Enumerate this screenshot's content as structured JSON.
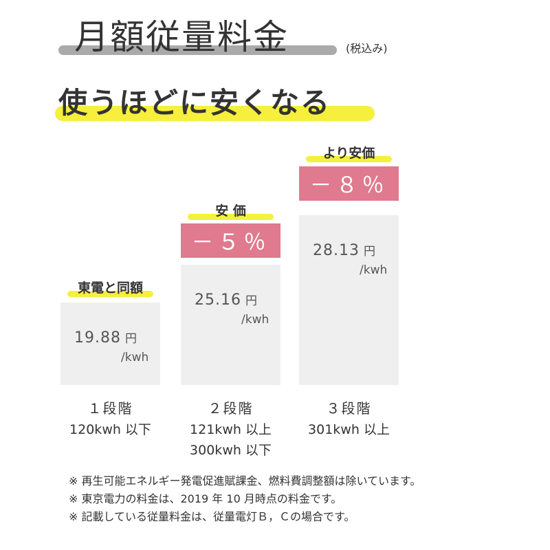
{
  "header": {
    "title": "月額従量料金",
    "note": "(税込み)",
    "headline": "使うほどに安くなる"
  },
  "tiers": [
    {
      "label": "東電と同額",
      "price": "19.88",
      "unit": "円",
      "per": "/kwh",
      "stage": "１段階",
      "range": [
        "120kwh 以下"
      ]
    },
    {
      "label": "安 価",
      "discount": "－５％",
      "price": "25.16",
      "unit": "円",
      "per": "/kwh",
      "stage": "２段階",
      "range": [
        "121kwh 以上",
        "300kwh 以下"
      ]
    },
    {
      "label": "より安価",
      "discount": "－８％",
      "price": "28.13",
      "unit": "円",
      "per": "/kwh",
      "stage": "３段階",
      "range": [
        "301kwh 以上"
      ]
    }
  ],
  "notes": [
    "※ 再生可能エネルギー発電促進賦課金、燃料費調整額は除いています。",
    "※ 東京電力の料金は、2019 年 10 月時点の料金です。",
    "※ 記載している従量料金は、従量電灯Ｂ，Ｃの場合です。"
  ]
}
